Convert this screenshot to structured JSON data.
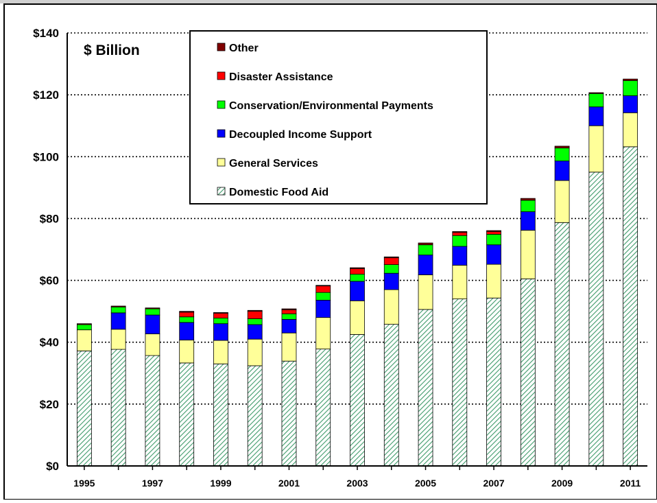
{
  "chart_data": {
    "type": "bar",
    "stacked": true,
    "unit_label": "$ Billion",
    "title": "",
    "xlabel": "",
    "ylabel": "",
    "ylim": [
      0,
      140
    ],
    "y_ticks": [
      "$0",
      "$20",
      "$40",
      "$60",
      "$80",
      "$100",
      "$120",
      "$140"
    ],
    "y_tick_values": [
      0,
      20,
      40,
      60,
      80,
      100,
      120,
      140
    ],
    "grid": "dotted horizontal",
    "legend_position": "top-center",
    "categories": [
      "1995",
      "1996",
      "1997",
      "1998",
      "1999",
      "2000",
      "2001",
      "2002",
      "2003",
      "2004",
      "2005",
      "2006",
      "2007",
      "2008",
      "2009",
      "2010",
      "2011"
    ],
    "x_tick_labels": [
      "1995",
      "",
      "1997",
      "",
      "1999",
      "",
      "2001",
      "",
      "2003",
      "",
      "2005",
      "",
      "2007",
      "",
      "2009",
      "",
      "2011"
    ],
    "series": [
      {
        "name": "Domestic Food Aid",
        "color": "#2e8b57",
        "pattern": "diagonal-hatch",
        "values": [
          37.2,
          37.7,
          35.7,
          33.3,
          33.0,
          32.4,
          33.9,
          37.8,
          42.5,
          45.8,
          50.6,
          54.0,
          54.3,
          60.5,
          78.7,
          95.0,
          103.2
        ]
      },
      {
        "name": "General Services",
        "color": "#ffff99",
        "values": [
          6.8,
          6.5,
          7.0,
          7.4,
          7.6,
          8.6,
          9.1,
          10.2,
          10.9,
          11.2,
          11.2,
          10.9,
          10.9,
          15.7,
          13.6,
          15.0,
          11.0
        ]
      },
      {
        "name": "Decoupled Income Support",
        "color": "#0000ff",
        "values": [
          0.0,
          5.3,
          6.1,
          5.7,
          5.4,
          4.7,
          4.4,
          5.6,
          6.3,
          5.3,
          6.4,
          6.1,
          6.3,
          6.0,
          6.3,
          6.1,
          5.5
        ]
      },
      {
        "name": "Conservation/Environmental Payments",
        "color": "#00ff00",
        "values": [
          1.7,
          1.9,
          2.0,
          1.8,
          1.8,
          1.9,
          1.8,
          2.5,
          2.3,
          2.8,
          3.3,
          3.5,
          3.4,
          3.7,
          4.2,
          4.3,
          4.9
        ]
      },
      {
        "name": "Disaster Assistance",
        "color": "#ff0000",
        "values": [
          0.0,
          0.0,
          0.0,
          1.5,
          1.6,
          2.4,
          1.3,
          2.1,
          1.8,
          2.2,
          0.0,
          1.0,
          0.9,
          0.0,
          0.0,
          0.0,
          0.0
        ]
      },
      {
        "name": "Other",
        "color": "#800000",
        "values": [
          0.3,
          0.3,
          0.3,
          0.3,
          0.2,
          0.3,
          0.3,
          0.2,
          0.3,
          0.3,
          0.6,
          0.3,
          0.3,
          0.6,
          0.6,
          0.3,
          0.5
        ]
      }
    ]
  }
}
